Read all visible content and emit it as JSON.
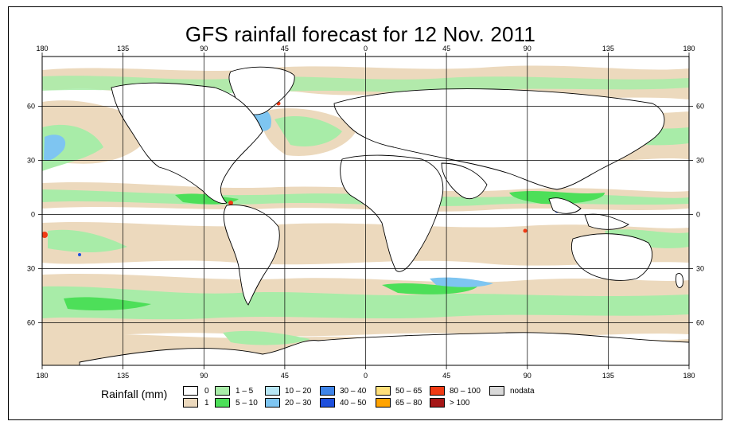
{
  "title": "GFS rainfall forecast for 12 Nov. 2011",
  "axes": {
    "top_lon_ticks": [
      "180",
      "135",
      "90",
      "45",
      "0",
      "45",
      "90",
      "135",
      "180"
    ],
    "bottom_lon_ticks": [
      "180",
      "135",
      "90",
      "45",
      "0",
      "45",
      "90",
      "135",
      "180"
    ],
    "left_lat_ticks": [
      "60",
      "30",
      "0",
      "30",
      "60"
    ],
    "right_lat_ticks": [
      "60",
      "30",
      "0",
      "30",
      "60"
    ]
  },
  "legend": {
    "title": "Rainfall (mm)",
    "items": [
      {
        "label": "0",
        "color": "#ffffff"
      },
      {
        "label": "1",
        "color": "#ecd9bd"
      },
      {
        "label": "1 – 5",
        "color": "#a8eca8"
      },
      {
        "label": "5 – 10",
        "color": "#4ddf59"
      },
      {
        "label": "10 – 20",
        "color": "#b7e6f5"
      },
      {
        "label": "20 – 30",
        "color": "#7ec5f1"
      },
      {
        "label": "30 – 40",
        "color": "#3f84e8"
      },
      {
        "label": "40 – 50",
        "color": "#1d4fdc"
      },
      {
        "label": "50 – 65",
        "color": "#ffe07a"
      },
      {
        "label": "65 – 80",
        "color": "#ffa300"
      },
      {
        "label": "80 – 100",
        "color": "#f03a14"
      },
      {
        "label": "> 100",
        "color": "#a51616"
      },
      {
        "label": "nodata",
        "color": "#d9d9d9"
      }
    ]
  }
}
